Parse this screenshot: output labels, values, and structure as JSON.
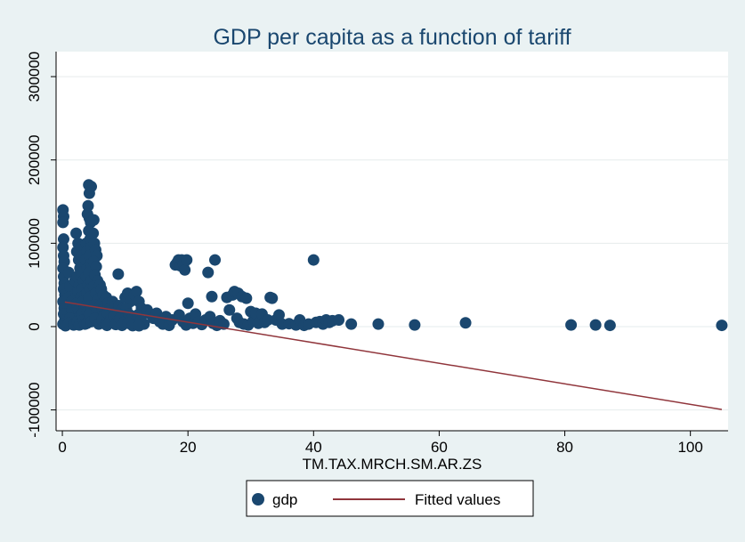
{
  "chart_data": {
    "type": "scatter",
    "title": "GDP per capita as a function of tariff",
    "xlabel": "TM.TAX.MRCH.SM.AR.ZS",
    "ylabel": "",
    "xlim": [
      -1,
      106
    ],
    "ylim": [
      -125000,
      330000
    ],
    "x_ticks": [
      0,
      20,
      40,
      60,
      80,
      100
    ],
    "y_ticks": [
      -100000,
      0,
      100000,
      200000,
      300000
    ],
    "x_tick_labels": [
      "0",
      "20",
      "40",
      "60",
      "80",
      "100"
    ],
    "y_tick_labels": [
      "-100000",
      "0",
      "100000",
      "200000",
      "300000"
    ],
    "grid": true,
    "legend_position": "bottom",
    "marker_color": "#1a476f",
    "line_color": "#90353b",
    "series": [
      {
        "name": "gdp",
        "kind": "points",
        "points": [
          [
            0.1,
            140000
          ],
          [
            0.2,
            132000
          ],
          [
            0.1,
            125000
          ],
          [
            0.2,
            105000
          ],
          [
            0.1,
            95000
          ],
          [
            0.2,
            85000
          ],
          [
            0.3,
            78000
          ],
          [
            0.1,
            70000
          ],
          [
            0.2,
            60000
          ],
          [
            0.3,
            52000
          ],
          [
            0.2,
            45000
          ],
          [
            0.4,
            38000
          ],
          [
            0.1,
            30000
          ],
          [
            0.3,
            22000
          ],
          [
            0.2,
            15000
          ],
          [
            0.4,
            8000
          ],
          [
            0.1,
            3000
          ],
          [
            0.5,
            1000
          ],
          [
            1.0,
            65000
          ],
          [
            1.2,
            48000
          ],
          [
            1.0,
            35000
          ],
          [
            1.5,
            20000
          ],
          [
            1.2,
            10000
          ],
          [
            1.0,
            4000
          ],
          [
            1.8,
            2000
          ],
          [
            1.5,
            30000
          ],
          [
            2.0,
            55000
          ],
          [
            2.2,
            40000
          ],
          [
            2.2,
            112000
          ],
          [
            2.5,
            100000
          ],
          [
            2.3,
            90000
          ],
          [
            2.6,
            80000
          ],
          [
            2.8,
            70000
          ],
          [
            2.4,
            60000
          ],
          [
            2.7,
            50000
          ],
          [
            2.5,
            42000
          ],
          [
            2.9,
            35000
          ],
          [
            2.3,
            28000
          ],
          [
            2.6,
            20000
          ],
          [
            2.8,
            12000
          ],
          [
            2.4,
            6000
          ],
          [
            2.7,
            2000
          ],
          [
            3.0,
            95000
          ],
          [
            3.2,
            85000
          ],
          [
            3.5,
            75000
          ],
          [
            3.1,
            65000
          ],
          [
            3.4,
            55000
          ],
          [
            3.2,
            45000
          ],
          [
            3.6,
            38000
          ],
          [
            3.3,
            30000
          ],
          [
            3.5,
            22000
          ],
          [
            3.1,
            15000
          ],
          [
            3.4,
            8000
          ],
          [
            3.6,
            3000
          ],
          [
            3.8,
            100000
          ],
          [
            3.9,
            90000
          ],
          [
            3.7,
            80000
          ],
          [
            4.0,
            70000
          ],
          [
            3.8,
            60000
          ],
          [
            4.1,
            50000
          ],
          [
            3.9,
            40000
          ],
          [
            4.2,
            32000
          ],
          [
            3.8,
            25000
          ],
          [
            4.0,
            18000
          ],
          [
            4.3,
            10000
          ],
          [
            3.9,
            4000
          ],
          [
            4.2,
            170000
          ],
          [
            4.6,
            168000
          ],
          [
            4.3,
            160000
          ],
          [
            4.1,
            145000
          ],
          [
            4.0,
            135000
          ],
          [
            4.3,
            130000
          ],
          [
            4.5,
            125000
          ],
          [
            4.2,
            115000
          ],
          [
            4.4,
            105000
          ],
          [
            4.6,
            95000
          ],
          [
            4.3,
            85000
          ],
          [
            4.5,
            75000
          ],
          [
            4.2,
            65000
          ],
          [
            4.6,
            55000
          ],
          [
            4.4,
            45000
          ],
          [
            4.2,
            35000
          ],
          [
            4.5,
            25000
          ],
          [
            4.3,
            15000
          ],
          [
            4.6,
            6000
          ],
          [
            5.0,
            128000
          ],
          [
            4.9,
            112000
          ],
          [
            5.1,
            100000
          ],
          [
            5.3,
            92000
          ],
          [
            5.5,
            85000
          ],
          [
            5.0,
            78000
          ],
          [
            5.4,
            72000
          ],
          [
            5.2,
            62000
          ],
          [
            5.6,
            55000
          ],
          [
            5.0,
            48000
          ],
          [
            5.3,
            40000
          ],
          [
            5.7,
            33000
          ],
          [
            5.1,
            26000
          ],
          [
            5.5,
            18000
          ],
          [
            5.2,
            10000
          ],
          [
            5.8,
            3000
          ],
          [
            6.0,
            50000
          ],
          [
            6.2,
            45000
          ],
          [
            6.5,
            38000
          ],
          [
            6.8,
            32000
          ],
          [
            6.1,
            26000
          ],
          [
            6.4,
            20000
          ],
          [
            6.7,
            14000
          ],
          [
            6.3,
            8000
          ],
          [
            6.9,
            3000
          ],
          [
            7.0,
            35000
          ],
          [
            7.3,
            28000
          ],
          [
            7.6,
            22000
          ],
          [
            7.2,
            16000
          ],
          [
            7.8,
            10000
          ],
          [
            7.5,
            5000
          ],
          [
            7.1,
            1500
          ],
          [
            8.0,
            30000
          ],
          [
            8.3,
            24000
          ],
          [
            8.6,
            18000
          ],
          [
            8.2,
            12000
          ],
          [
            8.8,
            7000
          ],
          [
            8.5,
            2500
          ],
          [
            8.9,
            63000
          ],
          [
            9.0,
            25000
          ],
          [
            9.4,
            20000
          ],
          [
            9.7,
            15000
          ],
          [
            9.2,
            10000
          ],
          [
            9.8,
            5000
          ],
          [
            9.5,
            1500
          ],
          [
            10.0,
            35000
          ],
          [
            10.4,
            40000
          ],
          [
            10.8,
            30000
          ],
          [
            10.2,
            22000
          ],
          [
            10.6,
            15000
          ],
          [
            11.0,
            9000
          ],
          [
            10.5,
            4000
          ],
          [
            11.2,
            1200
          ],
          [
            11.5,
            38000
          ],
          [
            11.8,
            42000
          ],
          [
            12.2,
            30000
          ],
          [
            12.6,
            22000
          ],
          [
            12.0,
            14000
          ],
          [
            12.5,
            8000
          ],
          [
            13.0,
            3000
          ],
          [
            12.2,
            1000
          ],
          [
            13.5,
            20000
          ],
          [
            14.0,
            15000
          ],
          [
            14.5,
            10000
          ],
          [
            15.0,
            16000
          ],
          [
            15.5,
            6000
          ],
          [
            16.0,
            3000
          ],
          [
            16.5,
            12000
          ],
          [
            17.0,
            1500
          ],
          [
            17.5,
            8000
          ],
          [
            18.0,
            74000
          ],
          [
            18.3,
            77000
          ],
          [
            18.5,
            80000
          ],
          [
            18.8,
            73000
          ],
          [
            19.0,
            80000
          ],
          [
            19.3,
            75000
          ],
          [
            19.5,
            68000
          ],
          [
            19.8,
            80000
          ],
          [
            18.6,
            14000
          ],
          [
            19.2,
            6000
          ],
          [
            19.7,
            2000
          ],
          [
            20.0,
            28000
          ],
          [
            20.3,
            10000
          ],
          [
            20.8,
            4000
          ],
          [
            21.2,
            15000
          ],
          [
            21.7,
            6000
          ],
          [
            22.2,
            2500
          ],
          [
            22.8,
            8000
          ],
          [
            23.2,
            65000
          ],
          [
            23.8,
            36000
          ],
          [
            24.3,
            80000
          ],
          [
            23.5,
            12000
          ],
          [
            24.0,
            4000
          ],
          [
            24.6,
            1500
          ],
          [
            25.1,
            7000
          ],
          [
            25.7,
            3000
          ],
          [
            26.2,
            35000
          ],
          [
            26.6,
            20000
          ],
          [
            27.1,
            38000
          ],
          [
            27.4,
            42000
          ],
          [
            27.8,
            10000
          ],
          [
            28.0,
            40000
          ],
          [
            28.2,
            5000
          ],
          [
            28.6,
            36000
          ],
          [
            28.9,
            3000
          ],
          [
            29.3,
            34000
          ],
          [
            29.6,
            2000
          ],
          [
            30.0,
            18000
          ],
          [
            30.4,
            7000
          ],
          [
            30.8,
            16000
          ],
          [
            31.2,
            4000
          ],
          [
            31.8,
            15000
          ],
          [
            32.2,
            5000
          ],
          [
            32.7,
            8000
          ],
          [
            33.1,
            35000
          ],
          [
            33.4,
            34000
          ],
          [
            34.0,
            8000
          ],
          [
            34.5,
            14000
          ],
          [
            35.0,
            3000
          ],
          [
            36.1,
            3500
          ],
          [
            37.2,
            2000
          ],
          [
            37.8,
            8000
          ],
          [
            38.5,
            1500
          ],
          [
            39.2,
            3000
          ],
          [
            40.0,
            80000
          ],
          [
            40.4,
            5000
          ],
          [
            41.0,
            6000
          ],
          [
            41.5,
            3000
          ],
          [
            42.0,
            8000
          ],
          [
            42.5,
            5000
          ],
          [
            43.0,
            7000
          ],
          [
            44.0,
            8000
          ],
          [
            46.0,
            3000
          ],
          [
            50.3,
            3000
          ],
          [
            56.1,
            2000
          ],
          [
            64.2,
            4500
          ],
          [
            81.0,
            2000
          ],
          [
            84.9,
            2000
          ],
          [
            87.2,
            1500
          ],
          [
            105.0,
            1500
          ]
        ]
      },
      {
        "name": "Fitted values",
        "kind": "line",
        "points": [
          [
            0.4,
            29500
          ],
          [
            105.0,
            -99500
          ]
        ]
      }
    ]
  }
}
